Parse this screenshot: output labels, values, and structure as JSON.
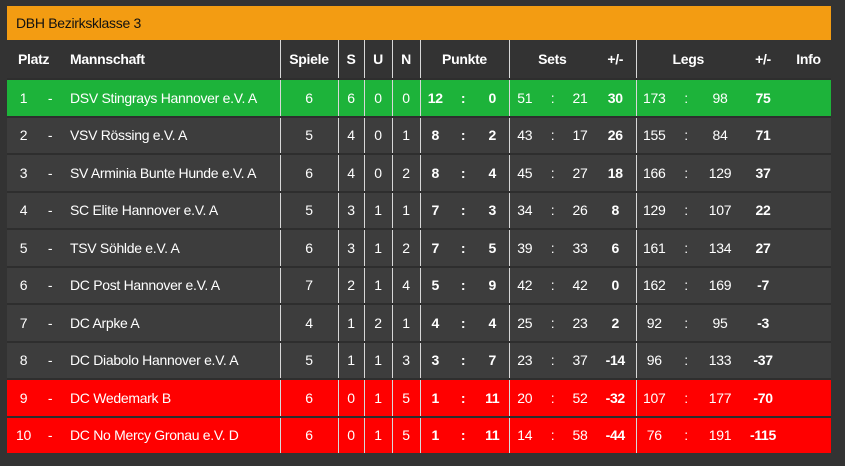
{
  "title": "DBH Bezirksklasse 3",
  "colors": {
    "header": "#f39c12",
    "promotion": "#1db33a",
    "relegation": "#ff0000",
    "row": "#3d3d3d"
  },
  "headers": {
    "platz": "Platz",
    "mannschaft": "Mannschaft",
    "spiele": "Spiele",
    "s": "S",
    "u": "U",
    "n": "N",
    "punkte": "Punkte",
    "sets": "Sets",
    "sets_diff": "+/-",
    "legs": "Legs",
    "legs_diff": "+/-",
    "info": "Info"
  },
  "rows": [
    {
      "status": "promotion",
      "rank": "1",
      "sep": "-",
      "team": "DSV Stingrays Hannover e.V. A",
      "games": "6",
      "s": "6",
      "u": "0",
      "n": "0",
      "pts_for": "12",
      "pts_sep": ":",
      "pts_against": "0",
      "sets_for": "51",
      "sets_sep": ":",
      "sets_against": "21",
      "sets_diff": "30",
      "legs_for": "173",
      "legs_sep": ":",
      "legs_against": "98",
      "legs_diff": "75"
    },
    {
      "status": "normal",
      "rank": "2",
      "sep": "-",
      "team": "VSV Rössing e.V. A",
      "games": "5",
      "s": "4",
      "u": "0",
      "n": "1",
      "pts_for": "8",
      "pts_sep": ":",
      "pts_against": "2",
      "sets_for": "43",
      "sets_sep": ":",
      "sets_against": "17",
      "sets_diff": "26",
      "legs_for": "155",
      "legs_sep": ":",
      "legs_against": "84",
      "legs_diff": "71"
    },
    {
      "status": "normal",
      "rank": "3",
      "sep": "-",
      "team": "SV Arminia Bunte Hunde e.V. A",
      "games": "6",
      "s": "4",
      "u": "0",
      "n": "2",
      "pts_for": "8",
      "pts_sep": ":",
      "pts_against": "4",
      "sets_for": "45",
      "sets_sep": ":",
      "sets_against": "27",
      "sets_diff": "18",
      "legs_for": "166",
      "legs_sep": ":",
      "legs_against": "129",
      "legs_diff": "37"
    },
    {
      "status": "normal",
      "rank": "4",
      "sep": "-",
      "team": "SC Elite Hannover e.V. A",
      "games": "5",
      "s": "3",
      "u": "1",
      "n": "1",
      "pts_for": "7",
      "pts_sep": ":",
      "pts_against": "3",
      "sets_for": "34",
      "sets_sep": ":",
      "sets_against": "26",
      "sets_diff": "8",
      "legs_for": "129",
      "legs_sep": ":",
      "legs_against": "107",
      "legs_diff": "22"
    },
    {
      "status": "normal",
      "rank": "5",
      "sep": "-",
      "team": "TSV Söhlde e.V. A",
      "games": "6",
      "s": "3",
      "u": "1",
      "n": "2",
      "pts_for": "7",
      "pts_sep": ":",
      "pts_against": "5",
      "sets_for": "39",
      "sets_sep": ":",
      "sets_against": "33",
      "sets_diff": "6",
      "legs_for": "161",
      "legs_sep": ":",
      "legs_against": "134",
      "legs_diff": "27"
    },
    {
      "status": "normal",
      "rank": "6",
      "sep": "-",
      "team": "DC Post Hannover e.V. A",
      "games": "7",
      "s": "2",
      "u": "1",
      "n": "4",
      "pts_for": "5",
      "pts_sep": ":",
      "pts_against": "9",
      "sets_for": "42",
      "sets_sep": ":",
      "sets_against": "42",
      "sets_diff": "0",
      "legs_for": "162",
      "legs_sep": ":",
      "legs_against": "169",
      "legs_diff": "-7"
    },
    {
      "status": "normal",
      "rank": "7",
      "sep": "-",
      "team": "DC Arpke A",
      "games": "4",
      "s": "1",
      "u": "2",
      "n": "1",
      "pts_for": "4",
      "pts_sep": ":",
      "pts_against": "4",
      "sets_for": "25",
      "sets_sep": ":",
      "sets_against": "23",
      "sets_diff": "2",
      "legs_for": "92",
      "legs_sep": ":",
      "legs_against": "95",
      "legs_diff": "-3"
    },
    {
      "status": "normal",
      "rank": "8",
      "sep": "-",
      "team": "DC Diabolo Hannover e.V. A",
      "games": "5",
      "s": "1",
      "u": "1",
      "n": "3",
      "pts_for": "3",
      "pts_sep": ":",
      "pts_against": "7",
      "sets_for": "23",
      "sets_sep": ":",
      "sets_against": "37",
      "sets_diff": "-14",
      "legs_for": "96",
      "legs_sep": ":",
      "legs_against": "133",
      "legs_diff": "-37"
    },
    {
      "status": "relegation",
      "rank": "9",
      "sep": "-",
      "team": "DC Wedemark B",
      "games": "6",
      "s": "0",
      "u": "1",
      "n": "5",
      "pts_for": "1",
      "pts_sep": ":",
      "pts_against": "11",
      "sets_for": "20",
      "sets_sep": ":",
      "sets_against": "52",
      "sets_diff": "-32",
      "legs_for": "107",
      "legs_sep": ":",
      "legs_against": "177",
      "legs_diff": "-70"
    },
    {
      "status": "relegation",
      "rank": "10",
      "sep": "-",
      "team": "DC No Mercy Gronau e.V. D",
      "games": "6",
      "s": "0",
      "u": "1",
      "n": "5",
      "pts_for": "1",
      "pts_sep": ":",
      "pts_against": "11",
      "sets_for": "14",
      "sets_sep": ":",
      "sets_against": "58",
      "sets_diff": "-44",
      "legs_for": "76",
      "legs_sep": ":",
      "legs_against": "191",
      "legs_diff": "-115"
    }
  ]
}
